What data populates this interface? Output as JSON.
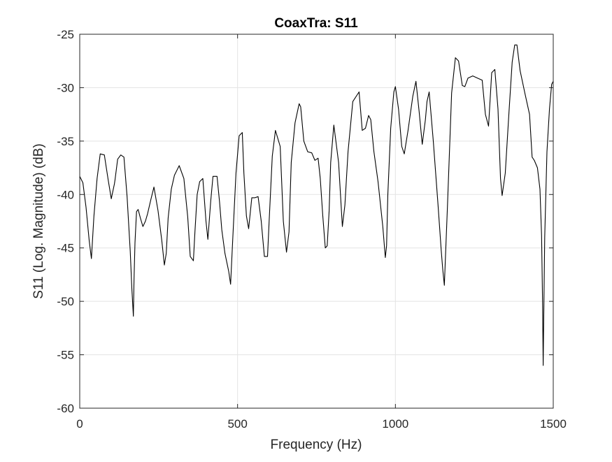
{
  "chart_data": {
    "type": "line",
    "title": "CoaxTra: S11",
    "xlabel": "Frequency (Hz)",
    "ylabel": "S11 (Log. Magnitude) (dB)",
    "xlim": [
      0,
      1500
    ],
    "ylim": [
      -60,
      -25
    ],
    "xticks": [
      0,
      500,
      1000,
      1500
    ],
    "xtick_labels": [
      "0",
      "500",
      "1000",
      "1500"
    ],
    "yticks": [
      -60,
      -55,
      -50,
      -45,
      -40,
      -35,
      -30,
      -25
    ],
    "ytick_labels": [
      "-60",
      "-55",
      "-50",
      "-45",
      "-40",
      "-35",
      "-30",
      "-25"
    ],
    "grid": true,
    "series": [
      {
        "color": "#000000",
        "x": [
          0,
          10,
          20,
          30,
          37,
          45,
          55,
          65,
          78,
          90,
          100,
          110,
          112,
          120,
          130,
          140,
          150,
          160,
          165,
          170,
          172,
          175,
          180,
          185,
          192,
          200,
          208,
          215,
          225,
          235,
          248,
          260,
          268,
          274,
          280,
          290,
          300,
          315,
          330,
          342,
          350,
          360,
          365,
          372,
          380,
          390,
          400,
          406,
          415,
          422,
          435,
          443,
          450,
          460,
          472,
          478,
          485,
          495,
          505,
          515,
          520,
          528,
          535,
          545,
          555,
          565,
          575,
          585,
          595,
          600,
          610,
          620,
          635,
          645,
          655,
          663,
          670,
          682,
          695,
          700,
          710,
          722,
          735,
          745,
          755,
          762,
          770,
          778,
          784,
          790,
          795,
          805,
          820,
          832,
          840,
          850,
          865,
          885,
          895,
          905,
          915,
          922,
          932,
          945,
          960,
          968,
          972,
          976,
          985,
          995,
          1000,
          1010,
          1020,
          1028,
          1040,
          1055,
          1065,
          1075,
          1085,
          1095,
          1100,
          1107,
          1120,
          1135,
          1145,
          1150,
          1155,
          1165,
          1178,
          1190,
          1200,
          1212,
          1220,
          1230,
          1245,
          1260,
          1275,
          1285,
          1295,
          1305,
          1315,
          1325,
          1333,
          1338,
          1348,
          1360,
          1370,
          1378,
          1385,
          1395,
          1410,
          1425,
          1433,
          1440,
          1450,
          1458,
          1463,
          1466,
          1468,
          1470,
          1473,
          1476,
          1480,
          1488,
          1495,
          1500
        ],
        "y": [
          -38.3,
          -38.9,
          -41.2,
          -44.3,
          -46.0,
          -42.0,
          -38.5,
          -36.2,
          -36.3,
          -38.6,
          -40.4,
          -39.0,
          -38.6,
          -36.7,
          -36.3,
          -36.5,
          -40.2,
          -45.3,
          -48.8,
          -51.4,
          -48.0,
          -44.5,
          -41.6,
          -41.4,
          -42.2,
          -43.0,
          -42.5,
          -41.8,
          -40.5,
          -39.3,
          -41.5,
          -44.3,
          -46.6,
          -45.5,
          -42.2,
          -39.5,
          -38.2,
          -37.3,
          -38.5,
          -42.1,
          -45.8,
          -46.2,
          -43.5,
          -40.0,
          -38.8,
          -38.5,
          -42.5,
          -44.2,
          -40.6,
          -38.3,
          -38.3,
          -40.7,
          -43.3,
          -45.5,
          -47.2,
          -48.4,
          -44.0,
          -38.0,
          -34.5,
          -34.2,
          -38.0,
          -42.0,
          -43.2,
          -40.3,
          -40.3,
          -40.2,
          -42.5,
          -45.8,
          -45.8,
          -42.5,
          -36.4,
          -34.0,
          -35.5,
          -42.5,
          -45.4,
          -43.5,
          -37.0,
          -33.3,
          -31.5,
          -31.8,
          -35.0,
          -36.0,
          -36.1,
          -36.8,
          -36.6,
          -38.5,
          -42.0,
          -45.0,
          -44.8,
          -41.5,
          -37.0,
          -33.5,
          -37.0,
          -43.0,
          -41.0,
          -36.0,
          -31.3,
          -30.4,
          -34.0,
          -33.8,
          -32.6,
          -33.0,
          -36.0,
          -38.8,
          -43.0,
          -45.9,
          -44.8,
          -40.0,
          -33.8,
          -30.4,
          -29.9,
          -32.0,
          -35.5,
          -36.2,
          -34.0,
          -30.8,
          -29.4,
          -32.2,
          -35.3,
          -33.0,
          -31.3,
          -30.4,
          -35.0,
          -41.0,
          -45.2,
          -47.0,
          -48.5,
          -41.0,
          -30.5,
          -27.2,
          -27.5,
          -29.8,
          -29.9,
          -29.1,
          -28.9,
          -29.1,
          -29.3,
          -32.5,
          -33.6,
          -28.6,
          -28.3,
          -32.0,
          -38.5,
          -40.1,
          -38.0,
          -32.2,
          -27.6,
          -26.0,
          -26.0,
          -28.4,
          -30.5,
          -32.5,
          -36.5,
          -36.8,
          -37.5,
          -39.5,
          -43.8,
          -50.0,
          -56.0,
          -51.0,
          -44.0,
          -40.5,
          -36.0,
          -32.0,
          -29.7,
          -29.4
        ]
      }
    ]
  }
}
